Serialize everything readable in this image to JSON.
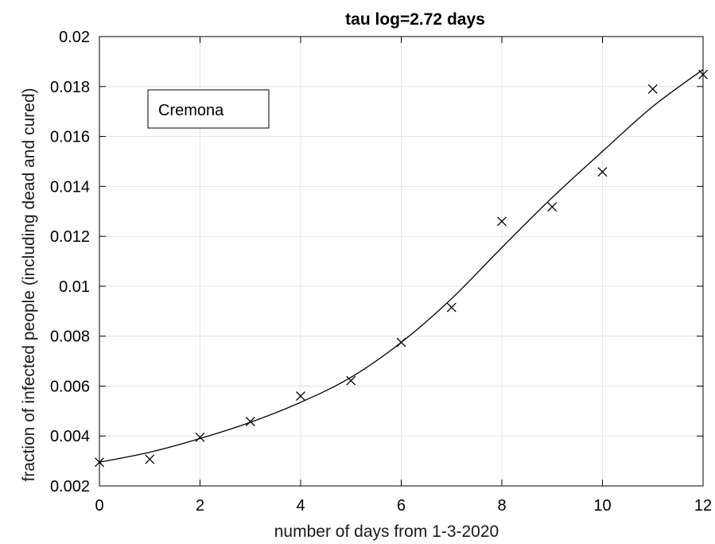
{
  "chart_data": {
    "type": "scatter",
    "title": "tau log=2.72 days",
    "xlabel": "number of days from 1-3-2020",
    "ylabel": "fraction of infected people (including dead and cured)",
    "xlim": [
      0,
      12
    ],
    "ylim": [
      0.002,
      0.02
    ],
    "x_ticks": [
      0,
      2,
      4,
      6,
      8,
      10,
      12
    ],
    "x_tick_labels": [
      "0",
      "2",
      "4",
      "6",
      "8",
      "10",
      "12"
    ],
    "y_ticks": [
      0.002,
      0.004,
      0.006,
      0.008,
      0.01,
      0.012,
      0.014,
      0.016,
      0.018,
      0.02
    ],
    "y_tick_labels": [
      "0.002",
      "0.004",
      "0.006",
      "0.008",
      "0.01",
      "0.012",
      "0.014",
      "0.016",
      "0.018",
      "0.02"
    ],
    "grid": true,
    "legend": {
      "label": "Cremona",
      "position": "top-left"
    },
    "series": [
      {
        "name": "Cremona",
        "kind": "markers",
        "marker": "x",
        "x": [
          0,
          1,
          2,
          3,
          4,
          5,
          6,
          7,
          8,
          9,
          10,
          11,
          12
        ],
        "y": [
          0.00295,
          0.00307,
          0.00395,
          0.00458,
          0.0056,
          0.00622,
          0.00775,
          0.00915,
          0.0126,
          0.01318,
          0.01458,
          0.0179,
          0.01848
        ]
      },
      {
        "kind": "line",
        "x": [
          0,
          1,
          2,
          3,
          4,
          5,
          6,
          7,
          8,
          9,
          10,
          11,
          12
        ],
        "y": [
          0.00295,
          0.00335,
          0.0039,
          0.00455,
          0.00535,
          0.00635,
          0.00775,
          0.0095,
          0.01155,
          0.01355,
          0.0154,
          0.0172,
          0.01868
        ]
      }
    ],
    "colors": {
      "markers": "#000000",
      "line": "#000000",
      "grid": "#e3e3e3"
    }
  }
}
